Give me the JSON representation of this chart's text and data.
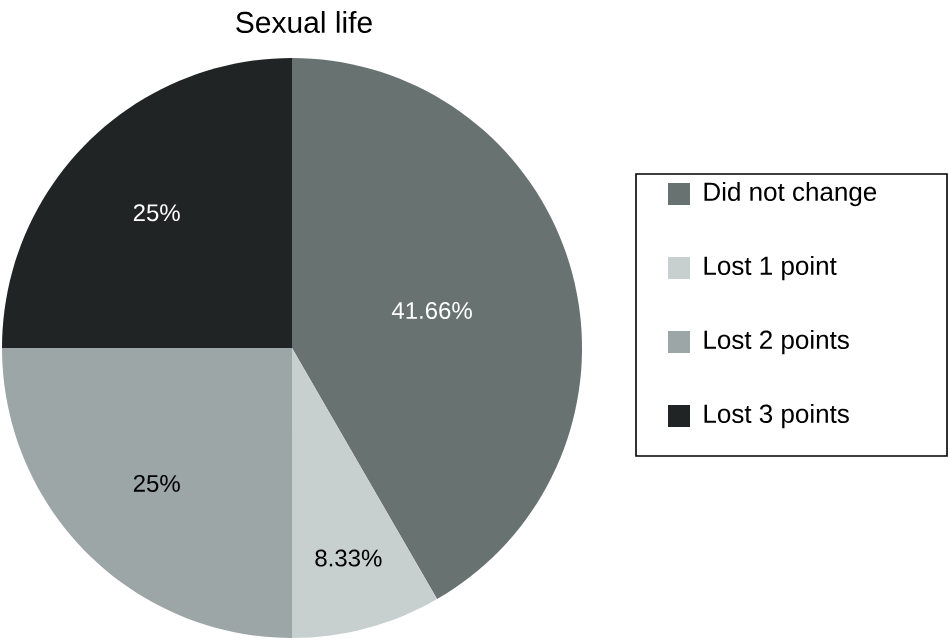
{
  "chart_data": {
    "type": "pie",
    "title": "Sexual life",
    "categories": [
      "Did not change",
      "Lost 1 point",
      "Lost 2 points",
      "Lost 3 points"
    ],
    "values": [
      41.66,
      8.33,
      25,
      25
    ],
    "colors": [
      "#687371",
      "#c8cfcf",
      "#9da6a6",
      "#212425"
    ],
    "value_labels": [
      "41.66%",
      "8.33%",
      "25%",
      "25%"
    ],
    "legend": "right"
  }
}
